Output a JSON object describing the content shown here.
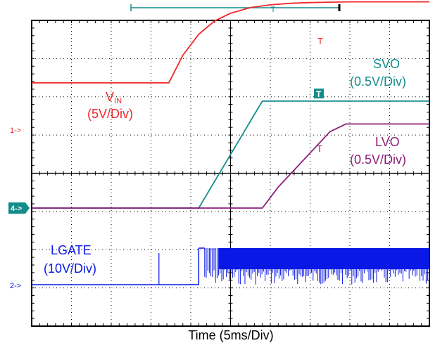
{
  "xlabel": "Time (5ms/Div)",
  "colors": {
    "ch1": "#f0282d",
    "ch4": "#148c8c",
    "ch3": "#8c1e78",
    "ch2": "#0a19e6",
    "grid": "#000000"
  },
  "channels": [
    {
      "marker": "1->",
      "name": "V",
      "sub": "IN",
      "scale": "(5V/Div)",
      "color_key": "ch1"
    },
    {
      "marker": "4->",
      "name": "SVO",
      "scale": "(0.5V/Div)",
      "color_key": "ch4"
    },
    {
      "name": "LVO",
      "scale": "(0.5V/Div)",
      "color_key": "ch3"
    },
    {
      "marker": "2->",
      "name": "LGATE",
      "scale": "(10V/Div)",
      "color_key": "ch2"
    }
  ],
  "trigger_marker": "T",
  "chart_data": {
    "type": "line",
    "xlabel": "Time (5ms/Div)",
    "x_divisions": 10,
    "y_divisions": 8,
    "grid": true,
    "x_unit_per_div_ms": 5,
    "series": [
      {
        "name": "VIN (5V/Div)",
        "x_div": [
          0,
          3.45,
          3.8,
          4.2,
          4.6,
          5.0,
          5.5,
          6.0,
          6.5,
          7.0,
          7.5,
          8.0,
          10
        ],
        "y_div": [
          1.18,
          1.18,
          1.9,
          2.45,
          2.8,
          3.0,
          3.15,
          3.22,
          3.26,
          3.28,
          3.29,
          3.3,
          3.3
        ]
      },
      {
        "name": "SVO (0.5V/Div)",
        "x_div": [
          0,
          4.2,
          5.0,
          5.8,
          6.1,
          10
        ],
        "y_div": [
          0,
          0,
          1.4,
          2.8,
          2.8,
          2.8
        ]
      },
      {
        "name": "LVO (0.5V/Div)",
        "x_div": [
          4.2,
          5.8,
          6.2,
          7.5,
          7.9,
          10
        ],
        "y_div": [
          0,
          0,
          0.55,
          2.0,
          2.2,
          2.2
        ]
      },
      {
        "name": "LGATE (10V/Div)",
        "x_div": [
          0,
          4.2,
          4.2,
          10
        ],
        "y_div": [
          0,
          0,
          1,
          1
        ],
        "note": "switching between 0 and 1 div after x=4.2"
      }
    ]
  }
}
